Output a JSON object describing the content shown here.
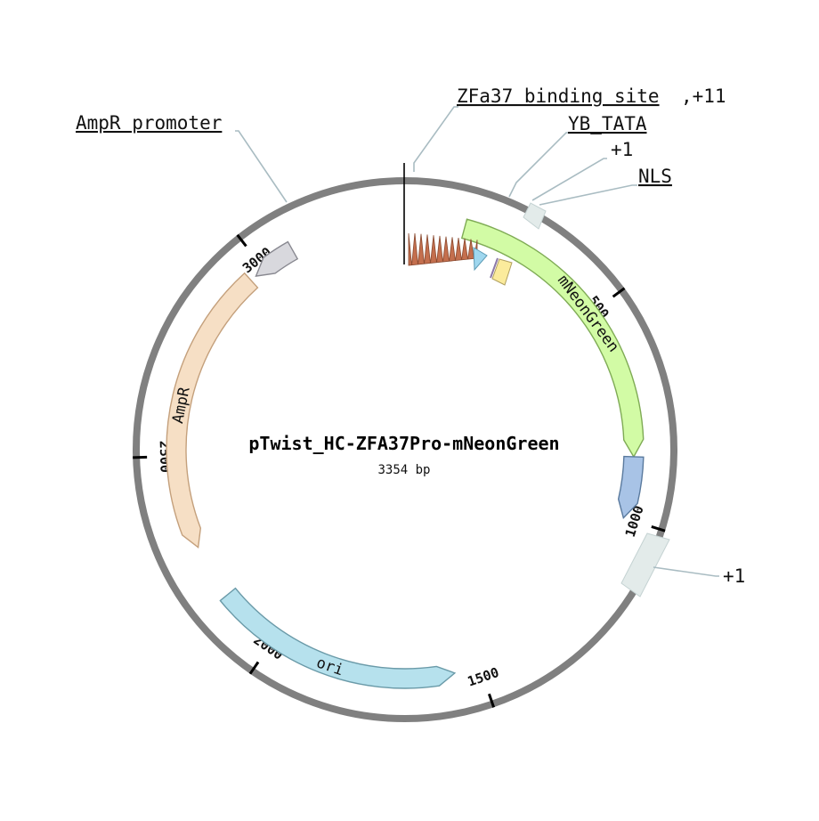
{
  "plasmid": {
    "name": "pTwist_HC-ZFA37Pro-mNeonGreen",
    "length_label": "3354 bp",
    "length": 3354
  },
  "ticks": [
    {
      "pos": 500,
      "label": "500"
    },
    {
      "pos": 1000,
      "label": "1000"
    },
    {
      "pos": 1500,
      "label": "1500"
    },
    {
      "pos": 2000,
      "label": "2000"
    },
    {
      "pos": 2500,
      "label": "2500"
    },
    {
      "pos": 3000,
      "label": "3000"
    }
  ],
  "features": [
    {
      "id": "mneongreen",
      "label": "mNeonGreen",
      "start": 140,
      "end": 855,
      "color": "#d2fba5",
      "stroke": "#7fab55",
      "dir": "fwd"
    },
    {
      "id": "blue-tag",
      "label": "",
      "start": 855,
      "end": 1000,
      "color": "#a8c3e6",
      "stroke": "#5a7a9e",
      "dir": "fwd"
    },
    {
      "id": "ori",
      "label": "ori",
      "start": 1560,
      "end": 2150,
      "color": "#b6e1ed",
      "stroke": "#6a9aa8",
      "dir": "rev"
    },
    {
      "id": "ampr",
      "label": "AmpR",
      "start": 2280,
      "end": 2960,
      "color": "#f6dfc5",
      "stroke": "#c4a07c",
      "dir": "rev"
    },
    {
      "id": "ampr-promoter",
      "label": "",
      "start": 2975,
      "end": 3080,
      "color": "#d8d8dd",
      "stroke": "#888890",
      "dir": "rev"
    }
  ],
  "labels": {
    "zfa37_binding_site": "ZFa37 binding site",
    "zfa37_suffix": ",+11",
    "yb_tata": "YB_TATA",
    "plus1_top": "+1",
    "nls": "NLS",
    "ampr_promoter": "AmpR promoter",
    "plus1_right": "+1"
  },
  "colors": {
    "backbone": "#808080",
    "binding_site": "#c46f4e",
    "tata_triangle": "#9fd7ef",
    "nls_box": "#fbeb9c",
    "marker": "#e3ebea"
  }
}
